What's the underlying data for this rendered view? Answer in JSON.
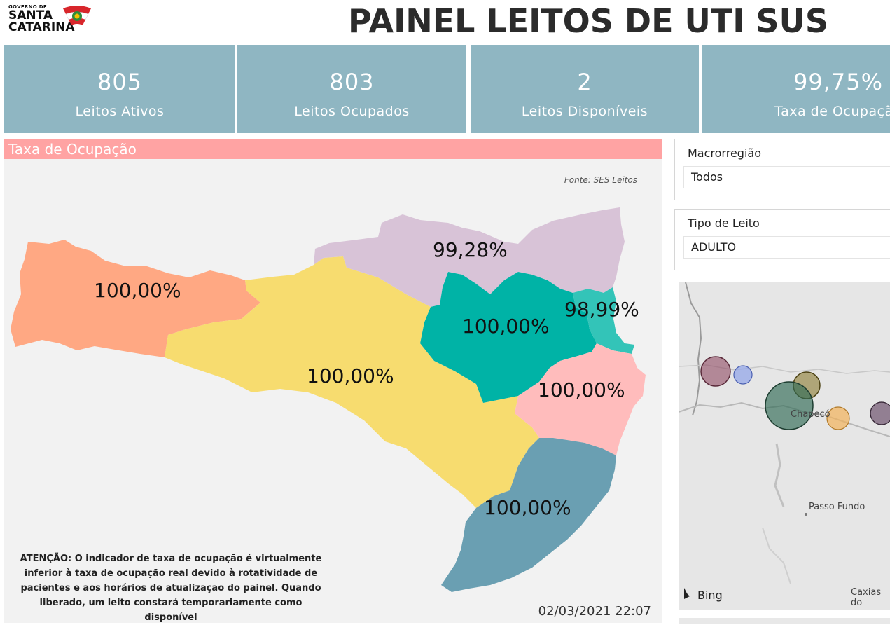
{
  "logo": {
    "line_top": "GOVERNO DE",
    "line1": "SANTA",
    "line2": "CATARINA"
  },
  "page_title": "PAINEL LEITOS DE UTI SUS",
  "kpis": [
    {
      "value": "805",
      "label": "Leitos Ativos"
    },
    {
      "value": "803",
      "label": "Leitos Ocupados"
    },
    {
      "value": "2",
      "label": "Leitos Disponíveis"
    },
    {
      "value": "99,75%",
      "label": "Taxa de Ocupação"
    }
  ],
  "map": {
    "header": "Taxa de Ocupação",
    "source": "Fonte: SES Leitos",
    "regions": [
      {
        "name_icon": "oeste",
        "value": "100,00%",
        "color": "#ffa883"
      },
      {
        "name_icon": "planalto-norte",
        "value": "99,28%",
        "color": "#d8c3d7"
      },
      {
        "name_icon": "meio-oeste-serra",
        "value": "100,00%",
        "color": "#f7dc6f"
      },
      {
        "name_icon": "vale-itajai",
        "value": "100,00%",
        "color": "#00b3a6"
      },
      {
        "name_icon": "foz-itajai",
        "value": "98,99%",
        "color": "#33c4b8"
      },
      {
        "name_icon": "grande-florianopolis",
        "value": "100,00%",
        "color": "#ffbcbc"
      },
      {
        "name_icon": "sul",
        "value": "100,00%",
        "color": "#6a9fb2"
      }
    ],
    "warning_lines": [
      "ATENÇÃO: O indicador de taxa de ocupação é virtualmente",
      "inferior à taxa de ocupação real devido à rotatividade de",
      "pacientes e aos horários de atualização do painel.  Quando",
      "liberado, um leito constará temporariamente como disponível"
    ],
    "timestamp": "02/03/2021 22:07"
  },
  "filters": {
    "macro": {
      "title": "Macrorregião",
      "value": "Todos"
    },
    "tipo": {
      "title": "Tipo de Leito",
      "value": "ADULTO"
    }
  },
  "minimap": {
    "cities": [
      "Chapecó",
      "Passo Fundo",
      "Caxias do"
    ],
    "attribution": "Bing"
  }
}
